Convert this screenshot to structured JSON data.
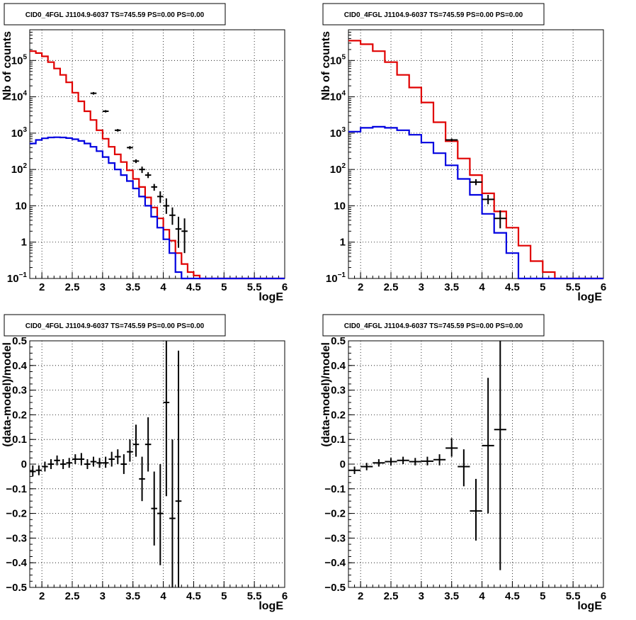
{
  "chart_data": [
    {
      "type": "line",
      "title": "CID0_4FGL J1104.9-6037 TS=745.59 PS=0.00 PS=0.00",
      "xlabel": "logE",
      "ylabel": "Nb of counts",
      "log_y": true,
      "grid": true,
      "xlim": [
        1.8,
        6.0
      ],
      "ylim": [
        0.1,
        700000
      ],
      "x_ticks": [
        "2",
        "2.5",
        "3",
        "3.5",
        "4",
        "4.5",
        "5",
        "5.5",
        "6"
      ],
      "y_ticks": [
        {
          "value": 0.1,
          "base": "10",
          "exp": "−1"
        },
        {
          "value": 1,
          "label": "1"
        },
        {
          "value": 10,
          "label": "10"
        },
        {
          "value": 100,
          "base": "10",
          "exp": "2"
        },
        {
          "value": 1000,
          "base": "10",
          "exp": "3"
        },
        {
          "value": 10000,
          "base": "10",
          "exp": "4"
        },
        {
          "value": 100000,
          "base": "10",
          "exp": "5"
        }
      ],
      "edges": [
        1.8,
        1.9,
        2.0,
        2.1,
        2.2,
        2.3,
        2.4,
        2.5,
        2.6,
        2.7,
        2.8,
        2.9,
        3.0,
        3.1,
        3.2,
        3.3,
        3.4,
        3.5,
        3.6,
        3.7,
        3.8,
        3.9,
        4.0,
        4.1,
        4.2,
        4.3,
        4.4,
        4.5,
        4.6,
        4.7,
        4.8,
        4.9,
        5.0,
        5.1,
        5.2,
        5.3,
        5.4,
        5.5,
        5.6,
        5.7,
        5.8,
        5.9,
        6.0
      ],
      "series": [
        {
          "color": "#e00000",
          "values": [
            180000,
            160000,
            130000,
            90000,
            60000,
            40000,
            25000,
            13000,
            7500,
            4000,
            2300,
            1200,
            700,
            420,
            260,
            160,
            95,
            55,
            33,
            17,
            9,
            4.5,
            2.2,
            1.1,
            0.5,
            0.25,
            0.15,
            0.12,
            0.1,
            0.1,
            0.1,
            0.1,
            0.1,
            0.1,
            0.1,
            0.1,
            0.1,
            0.1,
            0.1,
            0.1,
            0.1,
            0.1
          ]
        },
        {
          "color": "#0000e0",
          "values": [
            520,
            650,
            720,
            760,
            770,
            760,
            730,
            680,
            610,
            520,
            420,
            320,
            220,
            150,
            100,
            70,
            48,
            30,
            18,
            10,
            5,
            2.5,
            1.2,
            0.5,
            0.15,
            0.1,
            0.1,
            0.1,
            0.1,
            0.1,
            0.1,
            0.1,
            0.1,
            0.1,
            0.1,
            0.1,
            0.1,
            0.1,
            0.1,
            0.1,
            0.1,
            0.1
          ]
        }
      ],
      "points": [
        {
          "x": 2.85,
          "y": 12500,
          "xerr": 0.05,
          "ylo": 11500,
          "yhi": 13500
        },
        {
          "x": 3.05,
          "y": 4000,
          "xerr": 0.05,
          "ylo": 3700,
          "yhi": 4300
        },
        {
          "x": 3.25,
          "y": 1200,
          "xerr": 0.05,
          "ylo": 1100,
          "yhi": 1300
        },
        {
          "x": 3.45,
          "y": 400,
          "xerr": 0.05,
          "ylo": 360,
          "yhi": 440
        },
        {
          "x": 3.55,
          "y": 170,
          "xerr": 0.05,
          "ylo": 150,
          "yhi": 190
        },
        {
          "x": 3.65,
          "y": 100,
          "xerr": 0.05,
          "ylo": 80,
          "yhi": 120
        },
        {
          "x": 3.75,
          "y": 70,
          "xerr": 0.05,
          "ylo": 58,
          "yhi": 84
        },
        {
          "x": 3.85,
          "y": 33,
          "xerr": 0.05,
          "ylo": 26,
          "yhi": 40
        },
        {
          "x": 3.95,
          "y": 18,
          "xerr": 0.05,
          "ylo": 12,
          "yhi": 25
        },
        {
          "x": 4.05,
          "y": 10,
          "xerr": 0.05,
          "ylo": 6,
          "yhi": 16
        },
        {
          "x": 4.15,
          "y": 5.5,
          "xerr": 0.05,
          "ylo": 3,
          "yhi": 9
        },
        {
          "x": 4.25,
          "y": 2.3,
          "xerr": 0.05,
          "ylo": 0.7,
          "yhi": 5
        },
        {
          "x": 4.35,
          "y": 2.0,
          "xerr": 0.05,
          "ylo": 0.5,
          "yhi": 4.5
        }
      ]
    },
    {
      "type": "line",
      "title": "CID0_4FGL J1104.9-6037 TS=745.59 PS=0.00 PS=0.00",
      "xlabel": "logE",
      "ylabel": "Nb of counts",
      "log_y": true,
      "grid": true,
      "xlim": [
        1.8,
        6.0
      ],
      "ylim": [
        0.1,
        700000
      ],
      "x_ticks": [
        "2",
        "2.5",
        "3",
        "3.5",
        "4",
        "4.5",
        "5",
        "5.5",
        "6"
      ],
      "y_ticks": [
        {
          "value": 0.1,
          "base": "10",
          "exp": "−1"
        },
        {
          "value": 1,
          "label": "1"
        },
        {
          "value": 10,
          "label": "10"
        },
        {
          "value": 100,
          "base": "10",
          "exp": "2"
        },
        {
          "value": 1000,
          "base": "10",
          "exp": "3"
        },
        {
          "value": 10000,
          "base": "10",
          "exp": "4"
        },
        {
          "value": 100000,
          "base": "10",
          "exp": "5"
        }
      ],
      "edges": [
        1.8,
        2.0,
        2.2,
        2.4,
        2.6,
        2.8,
        3.0,
        3.2,
        3.4,
        3.6,
        3.8,
        4.0,
        4.2,
        4.4,
        4.6,
        4.8,
        5.0,
        5.2,
        5.4,
        5.6,
        5.8,
        6.0
      ],
      "series": [
        {
          "color": "#e00000",
          "values": [
            350000,
            280000,
            180000,
            90000,
            40000,
            18000,
            7000,
            2000,
            600,
            200,
            70,
            22,
            7,
            2.5,
            0.8,
            0.3,
            0.15,
            0.1,
            0.1,
            0.1,
            0.1
          ]
        },
        {
          "color": "#0000e0",
          "values": [
            1100,
            1400,
            1500,
            1400,
            1200,
            900,
            550,
            280,
            130,
            55,
            20,
            6,
            1.8,
            0.5,
            0.1,
            0.1,
            0.1,
            0.1,
            0.1,
            0.1,
            0.1
          ]
        }
      ],
      "points": [
        {
          "x": 3.5,
          "y": 650,
          "xerr": 0.1,
          "ylo": 590,
          "yhi": 710
        },
        {
          "x": 3.9,
          "y": 45,
          "xerr": 0.1,
          "ylo": 37,
          "yhi": 54
        },
        {
          "x": 4.1,
          "y": 15,
          "xerr": 0.1,
          "ylo": 11,
          "yhi": 20
        },
        {
          "x": 4.3,
          "y": 4.5,
          "xerr": 0.1,
          "ylo": 2.4,
          "yhi": 7.5
        }
      ]
    },
    {
      "type": "scatter",
      "title": "CID0_4FGL J1104.9-6037 TS=745.59 PS=0.00 PS=0.00",
      "xlabel": "logE",
      "ylabel": "(data-model)/model",
      "log_y": false,
      "grid": true,
      "xlim": [
        1.8,
        6.0
      ],
      "ylim": [
        -0.5,
        0.5
      ],
      "x_ticks": [
        "2",
        "2.5",
        "3",
        "3.5",
        "4",
        "4.5",
        "5",
        "5.5",
        "6"
      ],
      "y_ticks": [
        {
          "value": -0.5,
          "label": "−0.5"
        },
        {
          "value": -0.4,
          "label": "−0.4"
        },
        {
          "value": -0.3,
          "label": "−0.3"
        },
        {
          "value": -0.2,
          "label": "−0.2"
        },
        {
          "value": -0.1,
          "label": "−0.1"
        },
        {
          "value": 0,
          "label": "0"
        },
        {
          "value": 0.1,
          "label": "0.1"
        },
        {
          "value": 0.2,
          "label": "0.2"
        },
        {
          "value": 0.3,
          "label": "0.3"
        },
        {
          "value": 0.4,
          "label": "0.4"
        },
        {
          "value": 0.5,
          "label": "0.5"
        }
      ],
      "points": [
        {
          "x": 1.85,
          "y": -0.03,
          "xerr": 0.05,
          "ylo": -0.05,
          "yhi": -0.005
        },
        {
          "x": 1.95,
          "y": -0.025,
          "xerr": 0.05,
          "ylo": -0.045,
          "yhi": -0.005
        },
        {
          "x": 2.05,
          "y": -0.01,
          "xerr": 0.05,
          "ylo": -0.03,
          "yhi": 0.01
        },
        {
          "x": 2.15,
          "y": 0.0,
          "xerr": 0.05,
          "ylo": -0.02,
          "yhi": 0.02
        },
        {
          "x": 2.25,
          "y": 0.015,
          "xerr": 0.05,
          "ylo": -0.005,
          "yhi": 0.035
        },
        {
          "x": 2.35,
          "y": 0.0,
          "xerr": 0.05,
          "ylo": -0.02,
          "yhi": 0.02
        },
        {
          "x": 2.45,
          "y": 0.005,
          "xerr": 0.05,
          "ylo": -0.015,
          "yhi": 0.025
        },
        {
          "x": 2.55,
          "y": 0.02,
          "xerr": 0.05,
          "ylo": 0.0,
          "yhi": 0.04
        },
        {
          "x": 2.65,
          "y": 0.02,
          "xerr": 0.05,
          "ylo": -0.005,
          "yhi": 0.045
        },
        {
          "x": 2.75,
          "y": 0.0,
          "xerr": 0.05,
          "ylo": -0.02,
          "yhi": 0.02
        },
        {
          "x": 2.85,
          "y": 0.01,
          "xerr": 0.05,
          "ylo": -0.01,
          "yhi": 0.03
        },
        {
          "x": 2.95,
          "y": 0.005,
          "xerr": 0.05,
          "ylo": -0.015,
          "yhi": 0.025
        },
        {
          "x": 3.05,
          "y": 0.005,
          "xerr": 0.05,
          "ylo": -0.015,
          "yhi": 0.03
        },
        {
          "x": 3.15,
          "y": 0.02,
          "xerr": 0.05,
          "ylo": -0.01,
          "yhi": 0.05
        },
        {
          "x": 3.25,
          "y": 0.03,
          "xerr": 0.05,
          "ylo": 0.0,
          "yhi": 0.06
        },
        {
          "x": 3.35,
          "y": 0.0,
          "xerr": 0.05,
          "ylo": -0.04,
          "yhi": 0.04
        },
        {
          "x": 3.45,
          "y": 0.05,
          "xerr": 0.05,
          "ylo": 0.01,
          "yhi": 0.1
        },
        {
          "x": 3.55,
          "y": 0.08,
          "xerr": 0.05,
          "ylo": 0.03,
          "yhi": 0.16
        },
        {
          "x": 3.65,
          "y": -0.06,
          "xerr": 0.05,
          "ylo": -0.15,
          "yhi": 0.03
        },
        {
          "x": 3.75,
          "y": 0.08,
          "xerr": 0.05,
          "ylo": -0.03,
          "yhi": 0.19
        },
        {
          "x": 3.85,
          "y": -0.18,
          "xerr": 0.05,
          "ylo": -0.33,
          "yhi": -0.03
        },
        {
          "x": 3.95,
          "y": -0.2,
          "xerr": 0.05,
          "ylo": -0.41,
          "yhi": 0.0
        },
        {
          "x": 4.05,
          "y": 0.25,
          "xerr": 0.05,
          "ylo": -0.13,
          "yhi": 0.5
        },
        {
          "x": 4.15,
          "y": -0.22,
          "xerr": 0.05,
          "ylo": -0.5,
          "yhi": 0.1
        },
        {
          "x": 4.25,
          "y": -0.15,
          "xerr": 0.05,
          "ylo": -0.5,
          "yhi": 0.46
        }
      ]
    },
    {
      "type": "scatter",
      "title": "CID0_4FGL J1104.9-6037 TS=745.59 PS=0.00 PS=0.00",
      "xlabel": "logE",
      "ylabel": "(data-model)/model",
      "log_y": false,
      "grid": true,
      "xlim": [
        1.8,
        6.0
      ],
      "ylim": [
        -0.5,
        0.5
      ],
      "x_ticks": [
        "2",
        "2.5",
        "3",
        "3.5",
        "4",
        "4.5",
        "5",
        "5.5",
        "6"
      ],
      "y_ticks": [
        {
          "value": -0.5,
          "label": "−0.5"
        },
        {
          "value": -0.4,
          "label": "−0.4"
        },
        {
          "value": -0.3,
          "label": "−0.3"
        },
        {
          "value": -0.2,
          "label": "−0.2"
        },
        {
          "value": -0.1,
          "label": "−0.1"
        },
        {
          "value": 0,
          "label": "0"
        },
        {
          "value": 0.1,
          "label": "0.1"
        },
        {
          "value": 0.2,
          "label": "0.2"
        },
        {
          "value": 0.3,
          "label": "0.3"
        },
        {
          "value": 0.4,
          "label": "0.4"
        },
        {
          "value": 0.5,
          "label": "0.5"
        }
      ],
      "points": [
        {
          "x": 1.9,
          "y": -0.025,
          "xerr": 0.1,
          "ylo": -0.04,
          "yhi": -0.01
        },
        {
          "x": 2.1,
          "y": -0.01,
          "xerr": 0.1,
          "ylo": -0.025,
          "yhi": 0.005
        },
        {
          "x": 2.3,
          "y": 0.005,
          "xerr": 0.1,
          "ylo": -0.01,
          "yhi": 0.02
        },
        {
          "x": 2.5,
          "y": 0.01,
          "xerr": 0.1,
          "ylo": -0.005,
          "yhi": 0.025
        },
        {
          "x": 2.7,
          "y": 0.015,
          "xerr": 0.1,
          "ylo": 0.0,
          "yhi": 0.03
        },
        {
          "x": 2.9,
          "y": 0.01,
          "xerr": 0.1,
          "ylo": -0.005,
          "yhi": 0.025
        },
        {
          "x": 3.1,
          "y": 0.012,
          "xerr": 0.1,
          "ylo": -0.005,
          "yhi": 0.03
        },
        {
          "x": 3.3,
          "y": 0.018,
          "xerr": 0.1,
          "ylo": -0.005,
          "yhi": 0.04
        },
        {
          "x": 3.5,
          "y": 0.065,
          "xerr": 0.1,
          "ylo": 0.03,
          "yhi": 0.105
        },
        {
          "x": 3.7,
          "y": -0.01,
          "xerr": 0.1,
          "ylo": -0.09,
          "yhi": 0.06
        },
        {
          "x": 3.9,
          "y": -0.19,
          "xerr": 0.1,
          "ylo": -0.31,
          "yhi": -0.06
        },
        {
          "x": 4.1,
          "y": 0.075,
          "xerr": 0.1,
          "ylo": -0.2,
          "yhi": 0.35
        },
        {
          "x": 4.3,
          "y": 0.14,
          "xerr": 0.1,
          "ylo": -0.43,
          "yhi": 0.5
        }
      ]
    }
  ]
}
